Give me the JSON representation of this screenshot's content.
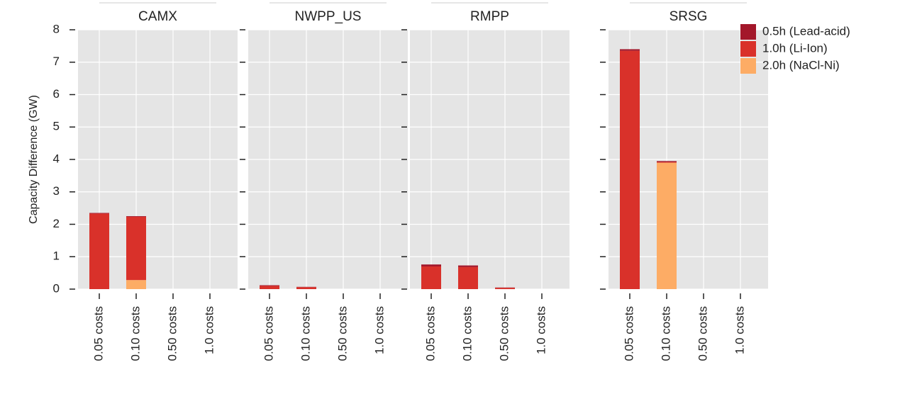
{
  "chart_data": {
    "type": "bar",
    "stacked": true,
    "ylabel": "Capacity Difference (GW)",
    "ylim": [
      0,
      8
    ],
    "yticks": [
      0,
      1,
      2,
      3,
      4,
      5,
      6,
      7,
      8
    ],
    "grid": true,
    "legend": "upper right",
    "series": [
      {
        "name": "0.5h (Lead-acid)",
        "color": "#a3172a"
      },
      {
        "name": "1.0h (Li-Ion)",
        "color": "#d9312a"
      },
      {
        "name": "2.0h (NaCl-Ni)",
        "color": "#fdac65"
      }
    ],
    "panels": [
      {
        "title": "CAMX",
        "categories": [
          "0.05 costs",
          "0.10 costs",
          "0.50 costs",
          "1.0 costs"
        ],
        "series": [
          {
            "values": [
              0.02,
              0.02,
              0,
              0
            ]
          },
          {
            "values": [
              2.33,
              1.95,
              0,
              0
            ]
          },
          {
            "values": [
              0,
              0.28,
              0,
              0
            ]
          }
        ]
      },
      {
        "title": "NWPP_US",
        "categories": [
          "0.05 costs",
          "0.10 costs",
          "0.50 costs",
          "1.0 costs"
        ],
        "series": [
          {
            "values": [
              0.02,
              0.01,
              0,
              0
            ]
          },
          {
            "values": [
              0.1,
              0.06,
              0,
              0
            ]
          },
          {
            "values": [
              0,
              0,
              0,
              0
            ]
          }
        ]
      },
      {
        "title": "RMPP",
        "categories": [
          "0.05 costs",
          "0.10 costs",
          "0.50 costs",
          "1.0 costs"
        ],
        "series": [
          {
            "values": [
              0.06,
              0.05,
              0.01,
              0
            ]
          },
          {
            "values": [
              0.7,
              0.68,
              0.04,
              0
            ]
          },
          {
            "values": [
              0,
              0,
              0,
              0
            ]
          }
        ]
      },
      {
        "title": "SRSG",
        "categories": [
          "0.05 costs",
          "0.10 costs",
          "0.50 costs",
          "1.0 costs"
        ],
        "series": [
          {
            "values": [
              0.05,
              0.03,
              0,
              0
            ]
          },
          {
            "values": [
              7.35,
              0.02,
              0,
              0
            ]
          },
          {
            "values": [
              0,
              3.9,
              0,
              0
            ]
          }
        ]
      }
    ]
  }
}
